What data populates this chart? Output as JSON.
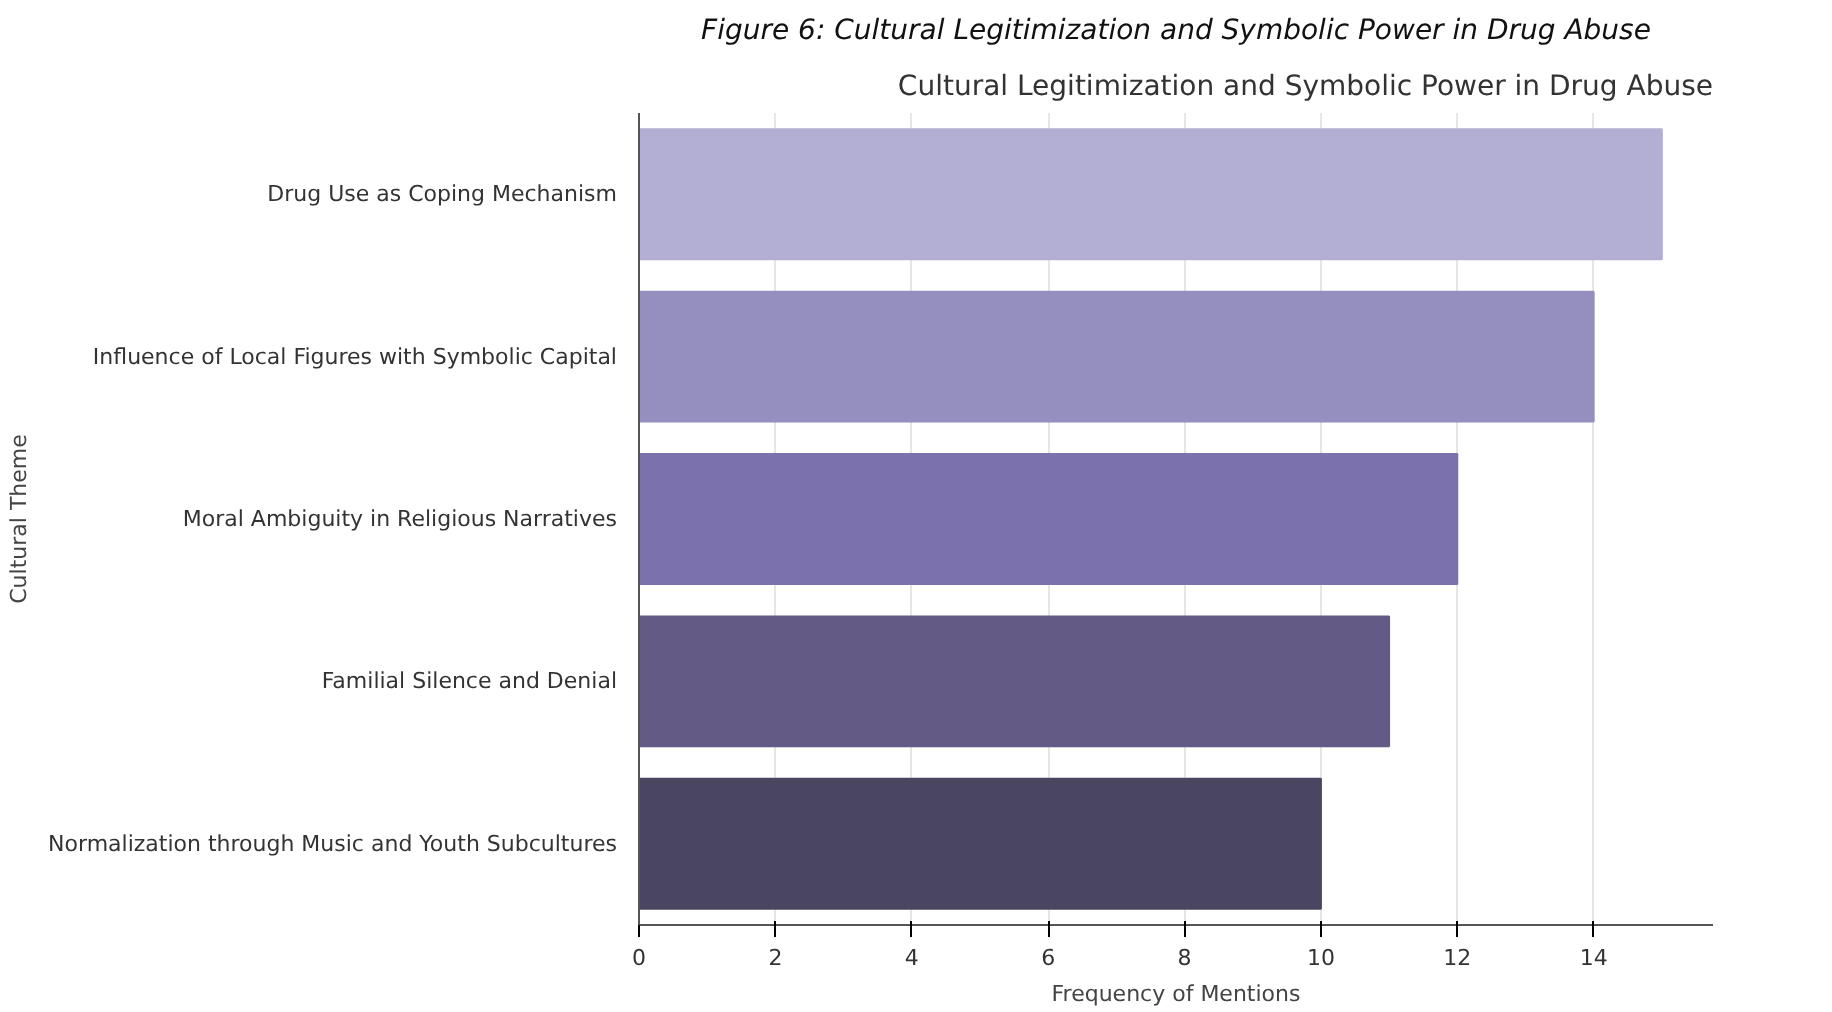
{
  "chart_data": {
    "type": "bar",
    "orientation": "horizontal",
    "title": "Figure 6: Cultural Legitimization and Symbolic Power in Drug Abuse",
    "subtitle": "Cultural Legitimization and Symbolic Power in Drug Abuse",
    "xlabel": "Frequency of Mentions",
    "ylabel": "Cultural Theme",
    "categories": [
      "Drug Use as Coping Mechanism",
      "Influence of Local Figures with Symbolic Capital",
      "Moral Ambiguity in Religious Narratives",
      "Familial Silence and Denial",
      "Normalization through Music and Youth Subcultures"
    ],
    "values": [
      15,
      14,
      12,
      11,
      10
    ],
    "colors": [
      "#b3aed4",
      "#948fbf",
      "#7b71ad",
      "#635a85",
      "#4a4560"
    ],
    "xlim": [
      0,
      15.75
    ],
    "xticks": [
      0,
      2,
      4,
      6,
      8,
      10,
      12,
      14
    ],
    "grid": "x"
  }
}
